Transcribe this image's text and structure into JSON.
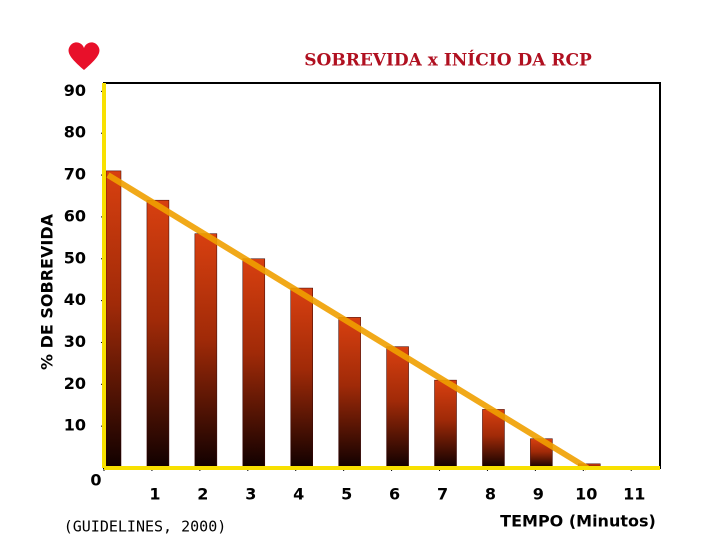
{
  "chart_data": {
    "type": "bar",
    "title": "SOBREVIDA x INÍCIO DA RCP",
    "x_label": "TEMPO (Minutos)",
    "y_label": "% DE SOBREVIDA",
    "source": "(GUIDELINES, 2000)",
    "x": [
      0,
      1,
      2,
      3,
      4,
      5,
      6,
      7,
      8,
      9,
      10
    ],
    "values": [
      71,
      64,
      56,
      50,
      43,
      36,
      29,
      21,
      14,
      7,
      1
    ],
    "color": "#d84010",
    "trendline": {
      "x": [
        0,
        10
      ],
      "values": [
        70,
        0
      ],
      "color": "#f0a000"
    },
    "xlim": [
      0,
      11.6
    ],
    "ylim": [
      0,
      92
    ],
    "xticks": [
      0,
      1,
      2,
      3,
      4,
      5,
      6,
      7,
      8,
      9,
      10,
      11
    ],
    "yticks": [
      10,
      20,
      30,
      40,
      50,
      60,
      70,
      80,
      90
    ],
    "grid": false
  }
}
